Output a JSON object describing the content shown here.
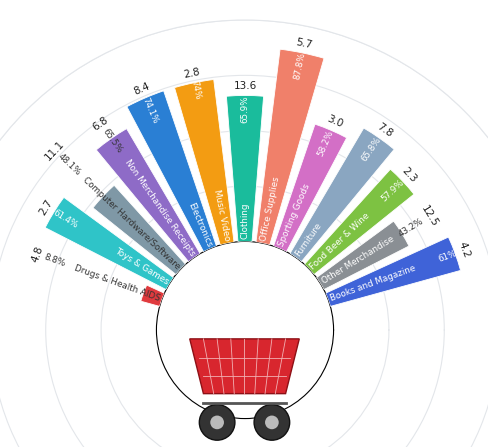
{
  "chart_data": {
    "type": "bar",
    "categories": [
      "Drugs & Health AIDS",
      "Toys & Games",
      "Computer Hardware/Software",
      "Non Merchandise Receipts",
      "Electronics",
      "Music Video",
      "Clothing",
      "Office Supplies",
      "Sporting Goods",
      "Furniture",
      "Food Beer & Wine",
      "Other Merchandise",
      "Books and Magazine"
    ],
    "values": [
      8.8,
      61.4,
      48.1,
      65.5,
      74.1,
      74,
      65.9,
      87.8,
      58.2,
      65.8,
      57.9,
      43.2,
      61
    ],
    "value_labels": [
      "8.8%",
      "61.4%",
      "48.1%",
      "65.5%",
      "74.1%",
      "74%",
      "65.9%",
      "87.8%",
      "58.2%",
      "65.8%",
      "57.9%",
      "43.2%",
      "61%"
    ],
    "amounts": [
      4.8,
      2.7,
      11.1,
      6.8,
      8.4,
      2.8,
      13.6,
      5.7,
      3.0,
      7.8,
      2.3,
      12.5,
      4.2
    ],
    "colors": [
      "#e03a3e",
      "#2fc4c8",
      "#7f98a6",
      "#8e6bc7",
      "#2a7fd4",
      "#f39c12",
      "#1abc9c",
      "#f0806a",
      "#d36fc6",
      "#8aa6c1",
      "#7dc242",
      "#8a8f94",
      "#3f63d8"
    ],
    "ylim": [
      0,
      100
    ],
    "yticks": [
      25,
      50,
      75,
      100
    ],
    "grid": true,
    "data_labels": true,
    "tick_labels": false
  }
}
